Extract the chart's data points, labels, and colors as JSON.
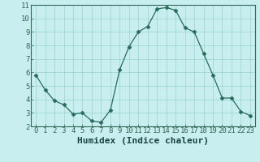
{
  "x": [
    0,
    1,
    2,
    3,
    4,
    5,
    6,
    7,
    8,
    9,
    10,
    11,
    12,
    13,
    14,
    15,
    16,
    17,
    18,
    19,
    20,
    21,
    22,
    23
  ],
  "y": [
    5.8,
    4.7,
    3.9,
    3.6,
    2.9,
    3.0,
    2.4,
    2.3,
    3.2,
    6.2,
    7.9,
    9.0,
    9.4,
    10.7,
    10.8,
    10.6,
    9.3,
    9.0,
    7.4,
    5.8,
    4.1,
    4.1,
    3.1,
    2.8
  ],
  "line_color": "#2a6b5a",
  "marker": "D",
  "marker_size": 2.5,
  "bg_color": "#c8eef0",
  "plot_bg_color": "#c8eef0",
  "grid_color": "#88cccc",
  "xlabel": "Humidex (Indice chaleur)",
  "xlabel_fontsize": 8,
  "ylim": [
    2,
    11
  ],
  "xlim": [
    -0.5,
    23.5
  ],
  "yticks": [
    2,
    3,
    4,
    5,
    6,
    7,
    8,
    9,
    10,
    11
  ],
  "xticks": [
    0,
    1,
    2,
    3,
    4,
    5,
    6,
    7,
    8,
    9,
    10,
    11,
    12,
    13,
    14,
    15,
    16,
    17,
    18,
    19,
    20,
    21,
    22,
    23
  ],
  "tick_fontsize": 6.5,
  "spine_color": "#336655"
}
